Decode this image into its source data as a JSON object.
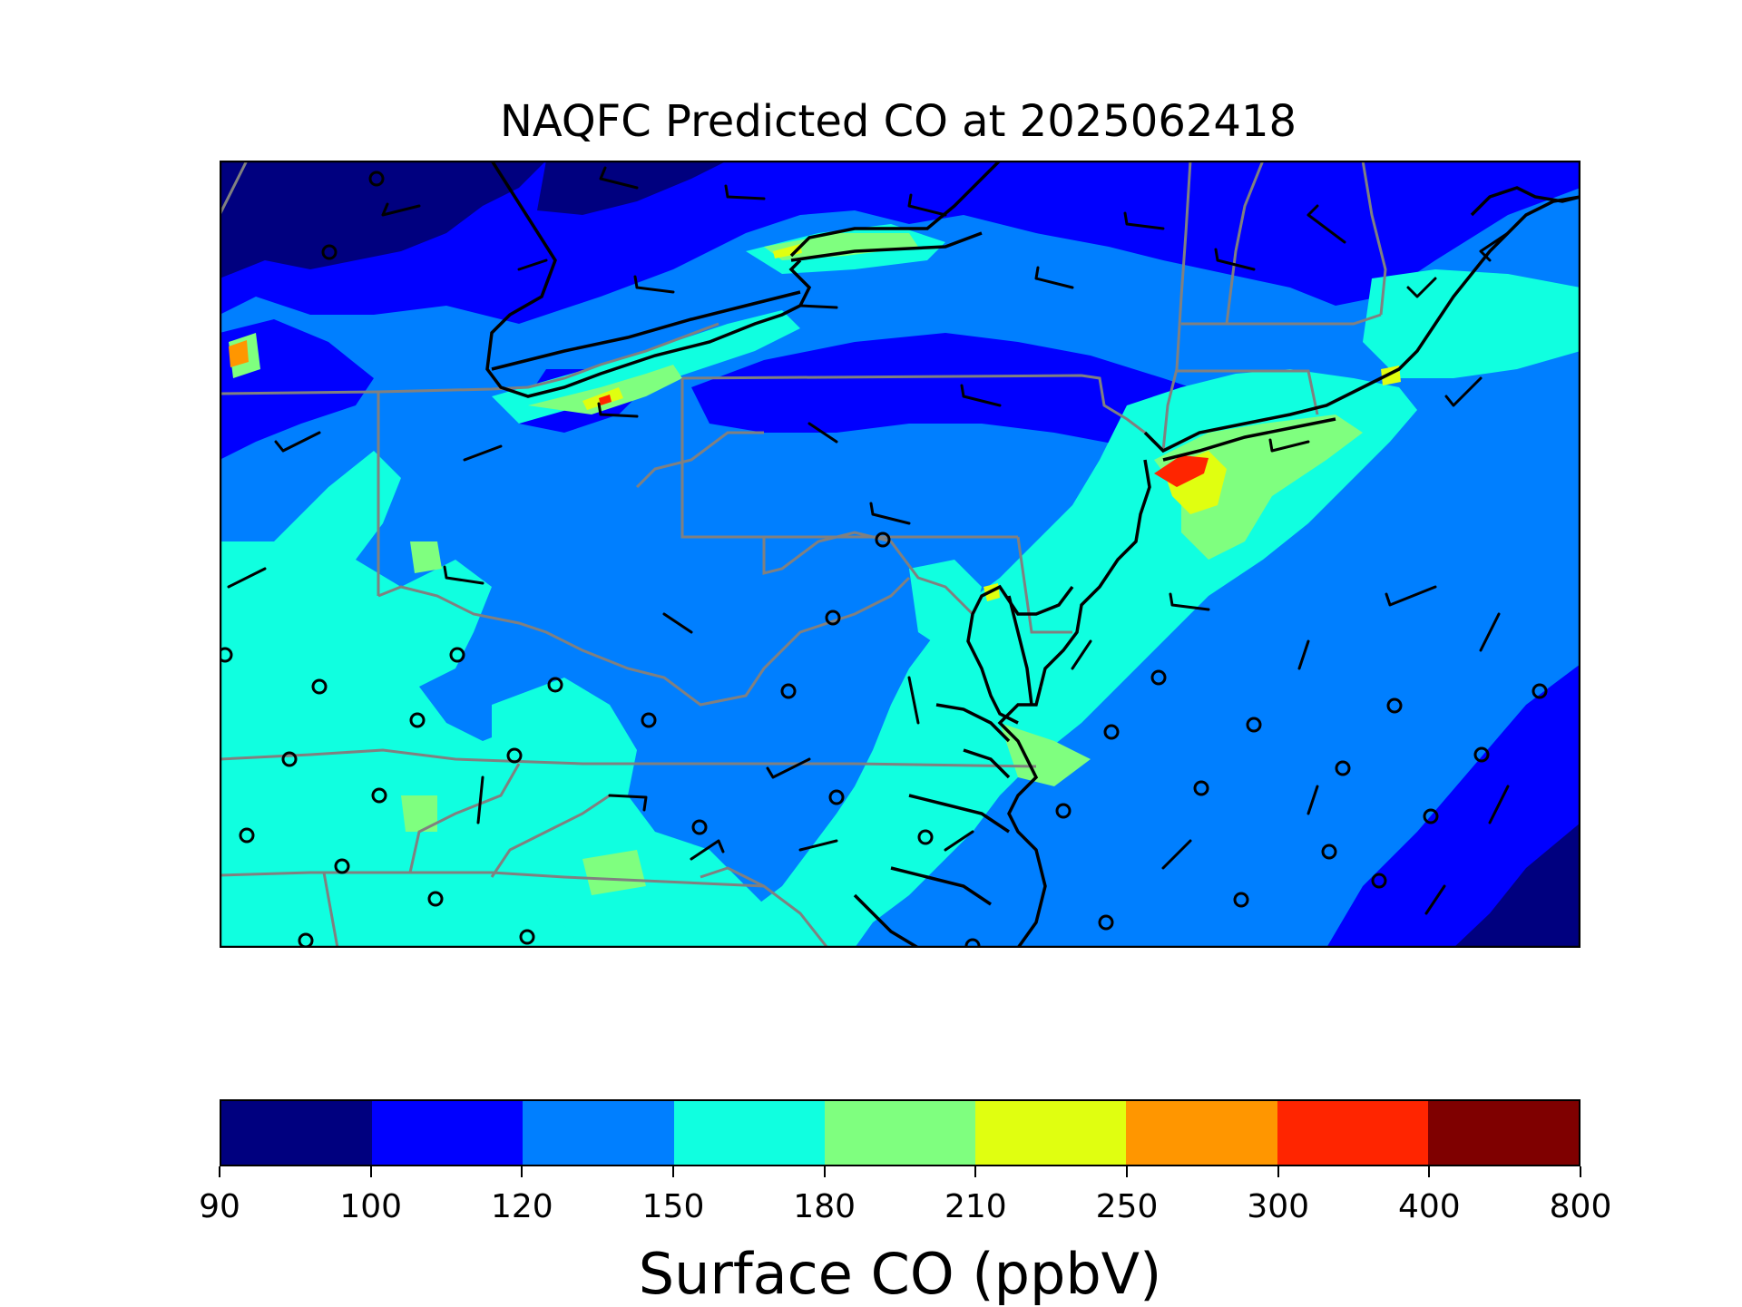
{
  "figure": {
    "title": "NAQFC Predicted CO at 2025062418"
  },
  "colorbar": {
    "label": "Surface CO (ppbV)",
    "levels": [
      "90",
      "100",
      "120",
      "150",
      "180",
      "210",
      "250",
      "300",
      "400",
      "800"
    ],
    "colors": [
      "#00007f",
      "#0000ff",
      "#007fff",
      "#10ffe0",
      "#7fff7f",
      "#e0ff10",
      "#ff9600",
      "#ff2500",
      "#7f0000"
    ]
  },
  "map": {
    "colors": {
      "state_borders": "#808080",
      "coastline": "#000000",
      "wind_barbs": "#000000"
    }
  }
}
